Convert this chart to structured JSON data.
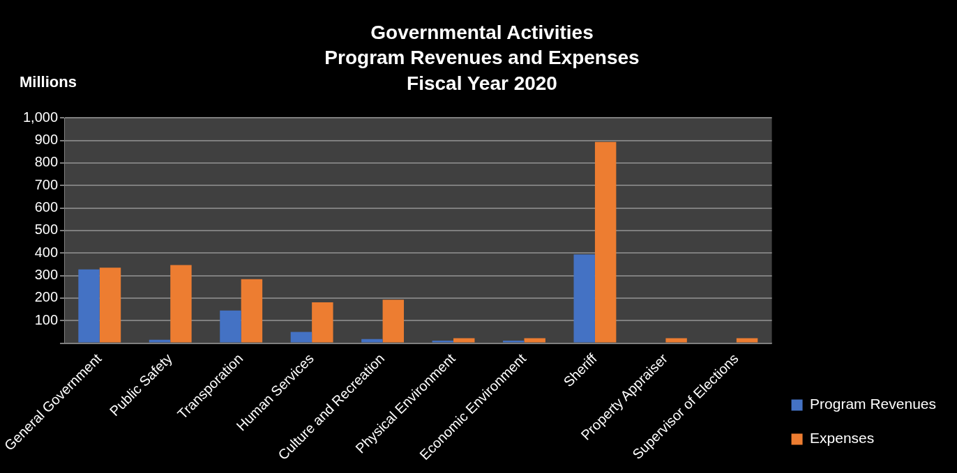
{
  "chart_data": {
    "type": "bar",
    "title": "Governmental Activities\nProgram Revenues and Expenses\nFiscal Year 2020",
    "ylabel": "Millions",
    "categories": [
      "General Government",
      "Public Safety",
      "Transporation",
      "Human Services",
      "Culture and Recreation",
      "Physical Environment",
      "Economic Environment",
      "Sheriff",
      "Property Appraiser",
      "Supervisor of Elections"
    ],
    "series": [
      {
        "name": "Program Revenues",
        "color": "#4472c4",
        "values": [
          327,
          15,
          145,
          50,
          18,
          11,
          11,
          394,
          0,
          0
        ]
      },
      {
        "name": "Expenses",
        "color": "#ed7d31",
        "values": [
          335,
          347,
          284,
          181,
          193,
          22,
          22,
          893,
          22,
          22
        ]
      }
    ],
    "ylim": [
      0,
      1000
    ],
    "yticks": [
      {
        "value": 0,
        "label": null
      },
      100,
      200,
      300,
      400,
      500,
      600,
      700,
      800,
      900,
      {
        "value": 1000,
        "label": "1,000"
      }
    ],
    "grid": "y",
    "legend": "right"
  }
}
